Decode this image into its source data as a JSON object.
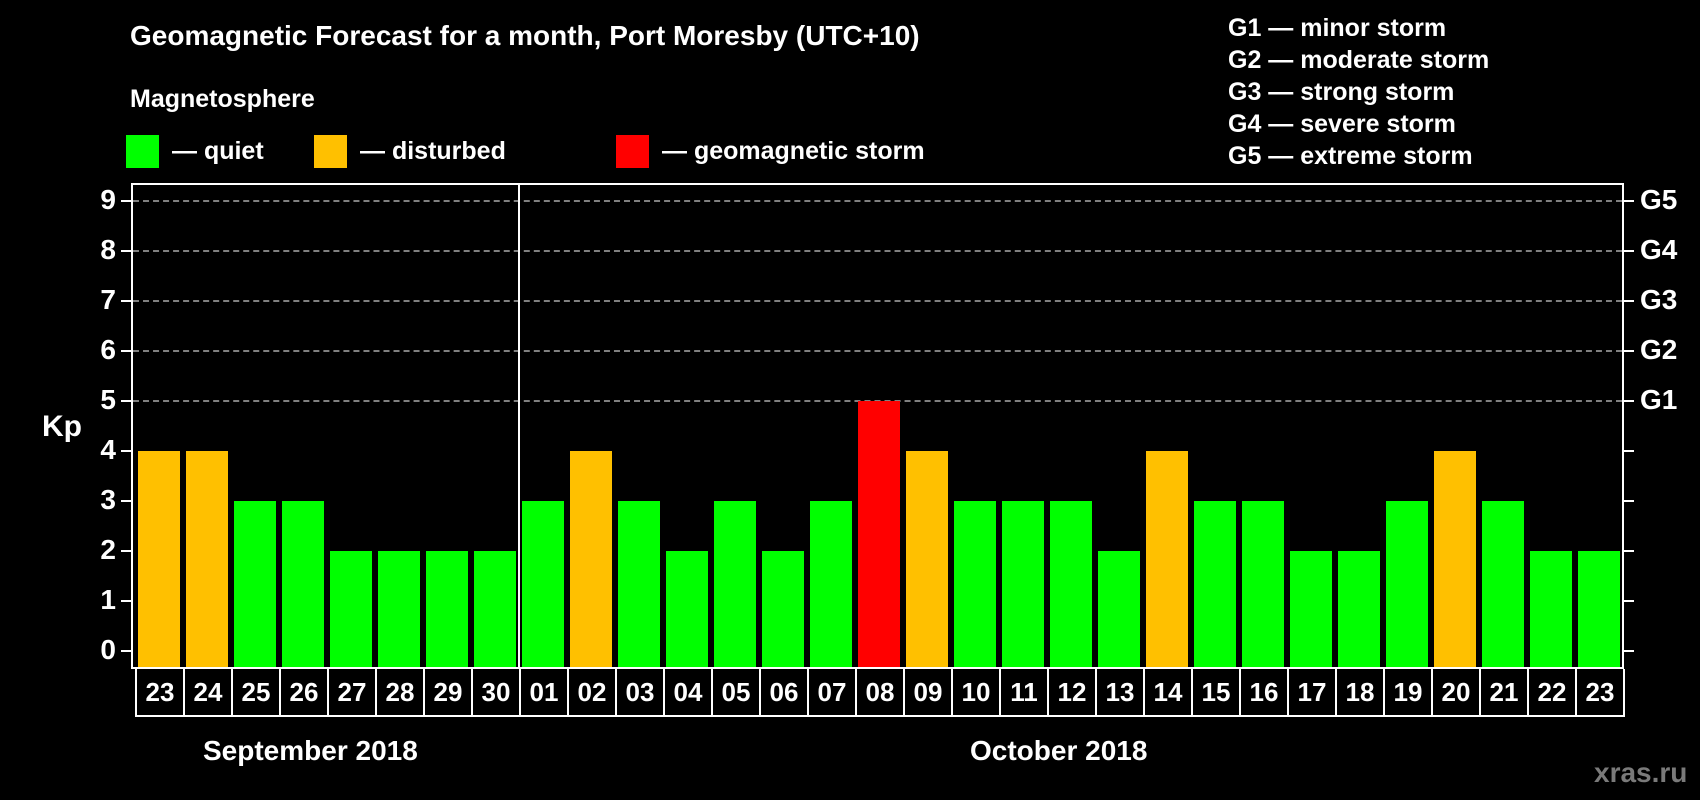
{
  "header": {
    "title": "Geomagnetic Forecast for a month, Port Moresby (UTC+10)",
    "subtitle": "Magnetosphere"
  },
  "legend": {
    "items": [
      {
        "label": "— quiet",
        "color": "#00ff00"
      },
      {
        "label": "— disturbed",
        "color": "#ffc000"
      },
      {
        "label": "— geomagnetic storm",
        "color": "#ff0000"
      }
    ],
    "storm_levels": [
      "G1 — minor storm",
      "G2 — moderate storm",
      "G3 — strong storm",
      "G4 — severe storm",
      "G5 — extreme storm"
    ]
  },
  "axes": {
    "ylabel": "Kp",
    "yticks": [
      "0",
      "1",
      "2",
      "3",
      "4",
      "5",
      "6",
      "7",
      "8",
      "9"
    ],
    "right_labels": [
      {
        "kp": 5,
        "label": "G1"
      },
      {
        "kp": 6,
        "label": "G2"
      },
      {
        "kp": 7,
        "label": "G3"
      },
      {
        "kp": 8,
        "label": "G4"
      },
      {
        "kp": 9,
        "label": "G5"
      }
    ],
    "months": [
      "September 2018",
      "October 2018"
    ]
  },
  "watermark": "xras.ru",
  "chart_data": {
    "type": "bar",
    "title": "Geomagnetic Forecast for a month, Port Moresby (UTC+10)",
    "subtitle": "Magnetosphere",
    "xlabel": "",
    "ylabel": "Kp",
    "ylim": [
      0,
      9
    ],
    "grid": "dashed horizontal at Kp 5-9",
    "legend_position": "top",
    "categories": [
      "23",
      "24",
      "25",
      "26",
      "27",
      "28",
      "29",
      "30",
      "01",
      "02",
      "03",
      "04",
      "05",
      "06",
      "07",
      "08",
      "09",
      "10",
      "11",
      "12",
      "13",
      "14",
      "15",
      "16",
      "17",
      "18",
      "19",
      "20",
      "21",
      "22",
      "23"
    ],
    "month_groups": [
      {
        "month": "September 2018",
        "days": [
          "23",
          "24",
          "25",
          "26",
          "27",
          "28",
          "29",
          "30"
        ]
      },
      {
        "month": "October 2018",
        "days": [
          "01",
          "02",
          "03",
          "04",
          "05",
          "06",
          "07",
          "08",
          "09",
          "10",
          "11",
          "12",
          "13",
          "14",
          "15",
          "16",
          "17",
          "18",
          "19",
          "20",
          "21",
          "22",
          "23"
        ]
      }
    ],
    "values": [
      4,
      4,
      3,
      3,
      2,
      2,
      2,
      2,
      3,
      4,
      3,
      2,
      3,
      2,
      3,
      5,
      4,
      3,
      3,
      3,
      2,
      4,
      3,
      3,
      2,
      2,
      3,
      4,
      3,
      2,
      2
    ],
    "status": [
      "disturbed",
      "disturbed",
      "quiet",
      "quiet",
      "quiet",
      "quiet",
      "quiet",
      "quiet",
      "quiet",
      "disturbed",
      "quiet",
      "quiet",
      "quiet",
      "quiet",
      "quiet",
      "storm",
      "disturbed",
      "quiet",
      "quiet",
      "quiet",
      "quiet",
      "disturbed",
      "quiet",
      "quiet",
      "quiet",
      "quiet",
      "quiet",
      "disturbed",
      "quiet",
      "quiet",
      "quiet"
    ],
    "colors": {
      "quiet": "#00ff00",
      "disturbed": "#ffc000",
      "storm": "#ff0000"
    },
    "right_axis": {
      "5": "G1",
      "6": "G2",
      "7": "G3",
      "8": "G4",
      "9": "G5"
    }
  }
}
